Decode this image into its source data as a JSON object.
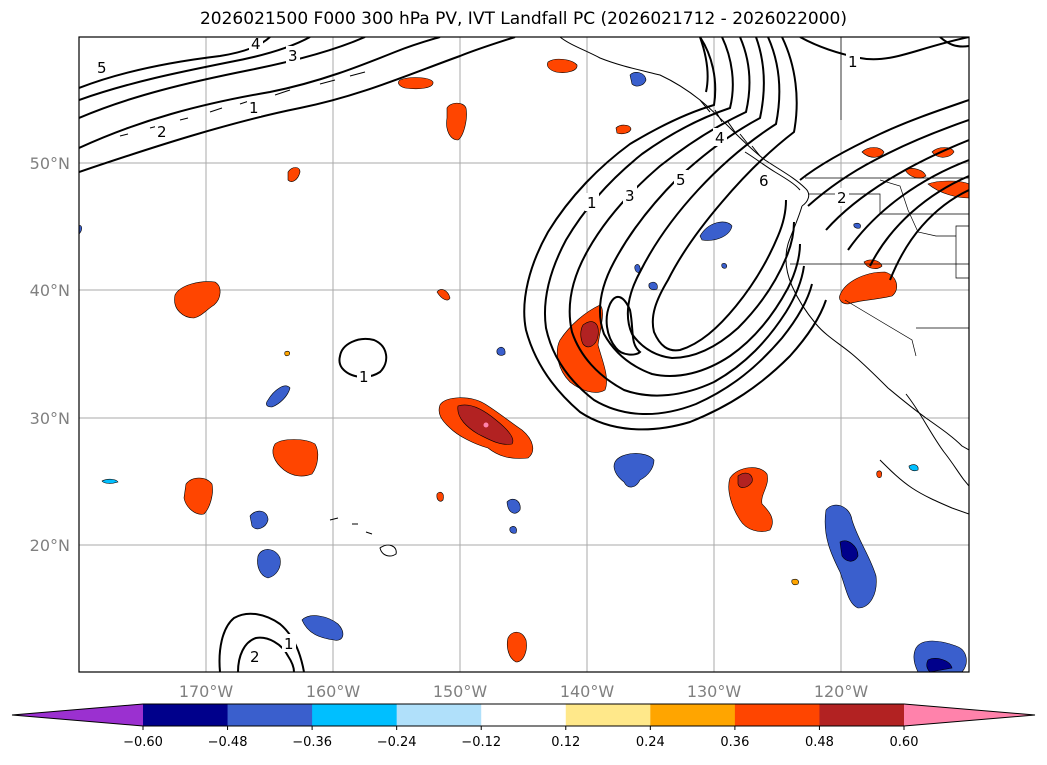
{
  "title": "2026021500 F000 300 hPa PV, IVT Landfall PC (2026021712 - 2026022000)",
  "lon_labels": [
    "170°W",
    "160°W",
    "150°W",
    "140°W",
    "130°W",
    "120°W"
  ],
  "lat_labels": [
    "50°N",
    "40°N",
    "30°N",
    "20°N"
  ],
  "colorbar": {
    "ticks": [
      "−0.60",
      "−0.48",
      "−0.36",
      "−0.24",
      "−0.12",
      "0.12",
      "0.24",
      "0.36",
      "0.48",
      "0.60"
    ],
    "colors": [
      "#9b30d0",
      "#00008b",
      "#3a5fcd",
      "#00bfff",
      "#b0e0fa",
      "#ffffff",
      "#ffe88a",
      "#ffa500",
      "#ff4500",
      "#b22222",
      "#ff82ab"
    ]
  },
  "contour_labels": {
    "north_5": "5",
    "north_4": "4",
    "north_3": "3",
    "north_2": "2",
    "north_1": "1",
    "ridge_1": "1",
    "ridge_3": "3",
    "ridge_5": "5",
    "ridge_4": "4",
    "ridge_6": "6",
    "ridge_2": "2",
    "ne_1": "1",
    "island_1": "1",
    "sw_2": "2",
    "sw_1": "1"
  }
}
